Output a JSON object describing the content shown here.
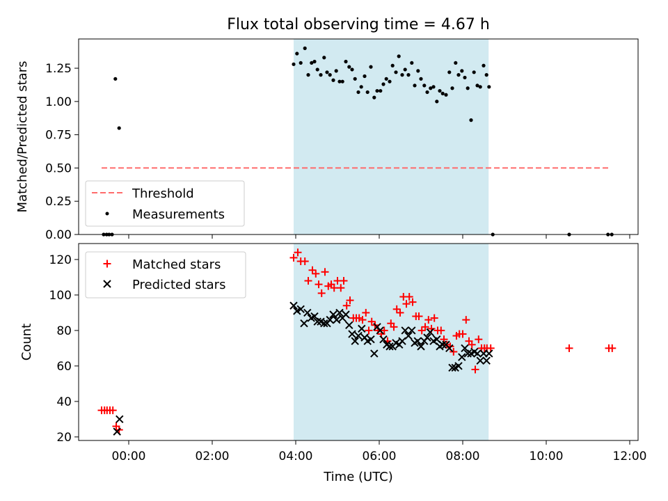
{
  "title": "Flux total observing time = 4.67 h",
  "colors": {
    "shade": "#add8e6",
    "threshold": "#ff6b6b",
    "measurements": "#000000",
    "matched": "#ff0000",
    "predicted": "#000000"
  },
  "chart_data": [
    {
      "type": "scatter",
      "ylabel": "Matched/Predicted stars",
      "xlim": [
        -1.2,
        12.2
      ],
      "ylim": [
        0,
        1.47
      ],
      "yticks": [
        0.0,
        0.25,
        0.5,
        0.75,
        1.0,
        1.25
      ],
      "ytick_labels": [
        "0.00",
        "0.25",
        "0.50",
        "0.75",
        "1.00",
        "1.25"
      ],
      "shaded_span": [
        3.95,
        8.62
      ],
      "threshold": {
        "label": "Threshold",
        "value": 0.5,
        "x_range": [
          -0.65,
          11.55
        ],
        "style": "dashed"
      },
      "legend": {
        "position": "lower-left",
        "entries": [
          "Threshold",
          "Measurements"
        ]
      },
      "series": [
        {
          "name": "Measurements",
          "marker": "dot",
          "x": [
            -0.6,
            -0.53,
            -0.47,
            -0.4,
            -0.32,
            -0.23,
            3.95,
            4.03,
            4.12,
            4.22,
            4.3,
            4.38,
            4.45,
            4.52,
            4.6,
            4.68,
            4.75,
            4.82,
            4.9,
            4.97,
            5.05,
            5.12,
            5.2,
            5.28,
            5.35,
            5.42,
            5.5,
            5.57,
            5.65,
            5.72,
            5.8,
            5.88,
            5.95,
            6.03,
            6.1,
            6.17,
            6.25,
            6.32,
            6.4,
            6.47,
            6.55,
            6.62,
            6.7,
            6.78,
            6.85,
            6.93,
            7.0,
            7.08,
            7.15,
            7.23,
            7.3,
            7.38,
            7.45,
            7.52,
            7.6,
            7.68,
            7.75,
            7.83,
            7.9,
            7.98,
            8.05,
            8.12,
            8.2,
            8.27,
            8.35,
            8.42,
            8.5,
            8.57,
            8.63,
            8.72,
            10.55,
            11.48,
            11.57
          ],
          "y": [
            0.0,
            0.0,
            0.0,
            0.0,
            1.17,
            0.8,
            1.28,
            1.36,
            1.29,
            1.4,
            1.2,
            1.29,
            1.3,
            1.24,
            1.2,
            1.33,
            1.22,
            1.2,
            1.16,
            1.23,
            1.15,
            1.15,
            1.3,
            1.26,
            1.24,
            1.17,
            1.07,
            1.11,
            1.19,
            1.07,
            1.26,
            1.03,
            1.08,
            1.08,
            1.13,
            1.17,
            1.15,
            1.27,
            1.22,
            1.34,
            1.2,
            1.24,
            1.2,
            1.29,
            1.12,
            1.23,
            1.17,
            1.12,
            1.07,
            1.1,
            1.11,
            1.0,
            1.08,
            1.06,
            1.05,
            1.22,
            1.1,
            1.29,
            1.2,
            1.23,
            1.18,
            1.1,
            0.86,
            1.22,
            1.12,
            1.11,
            1.27,
            1.2,
            1.11,
            0.0,
            0.0,
            0.0,
            0.0
          ]
        }
      ]
    },
    {
      "type": "scatter",
      "ylabel": "Count",
      "xlabel": "Time (UTC)",
      "xlim": [
        -1.2,
        12.2
      ],
      "ylim": [
        18,
        129
      ],
      "xticks": [
        0,
        2,
        4,
        6,
        8,
        10,
        12
      ],
      "xtick_labels": [
        "00:00",
        "02:00",
        "04:00",
        "06:00",
        "08:00",
        "10:00",
        "12:00"
      ],
      "yticks": [
        20,
        40,
        60,
        80,
        100,
        120
      ],
      "ytick_labels": [
        "20",
        "40",
        "60",
        "80",
        "100",
        "120"
      ],
      "shaded_span": [
        3.95,
        8.62
      ],
      "legend": {
        "position": "upper-left",
        "entries": [
          "Matched stars",
          "Predicted stars"
        ]
      },
      "series": [
        {
          "name": "Matched stars",
          "marker": "plus",
          "x": [
            -0.65,
            -0.58,
            -0.52,
            -0.45,
            -0.38,
            -0.3,
            -0.23,
            3.95,
            4.05,
            4.12,
            4.22,
            4.3,
            4.4,
            4.48,
            4.55,
            4.62,
            4.7,
            4.78,
            4.85,
            4.92,
            5.0,
            5.08,
            5.15,
            5.22,
            5.3,
            5.38,
            5.45,
            5.52,
            5.6,
            5.68,
            5.75,
            5.82,
            5.9,
            5.97,
            6.05,
            6.12,
            6.2,
            6.28,
            6.35,
            6.42,
            6.5,
            6.58,
            6.65,
            6.72,
            6.8,
            6.88,
            6.95,
            7.02,
            7.1,
            7.18,
            7.25,
            7.32,
            7.4,
            7.48,
            7.55,
            7.62,
            7.7,
            7.78,
            7.85,
            7.92,
            8.0,
            8.08,
            8.15,
            8.22,
            8.3,
            8.38,
            8.45,
            8.52,
            8.58,
            8.67,
            10.55,
            11.5,
            11.58
          ],
          "y": [
            35,
            35,
            35,
            35,
            35,
            26,
            24,
            121,
            124,
            119,
            119,
            108,
            114,
            112,
            106,
            101,
            113,
            105,
            106,
            104,
            108,
            104,
            108,
            94,
            97,
            87,
            87,
            87,
            86,
            90,
            80,
            85,
            83,
            80,
            78,
            80,
            74,
            84,
            82,
            92,
            90,
            99,
            95,
            99,
            96,
            88,
            88,
            80,
            82,
            86,
            81,
            87,
            80,
            80,
            75,
            72,
            71,
            68,
            77,
            78,
            78,
            86,
            74,
            72,
            58,
            75,
            70,
            70,
            70,
            70,
            70,
            70,
            70
          ]
        },
        {
          "name": "Predicted stars",
          "marker": "x",
          "x": [
            -0.28,
            -0.22,
            3.95,
            4.03,
            4.12,
            4.2,
            4.28,
            4.37,
            4.45,
            4.52,
            4.6,
            4.68,
            4.75,
            4.82,
            4.9,
            4.98,
            5.05,
            5.12,
            5.2,
            5.28,
            5.35,
            5.42,
            5.5,
            5.58,
            5.65,
            5.72,
            5.8,
            5.88,
            5.95,
            6.02,
            6.1,
            6.18,
            6.25,
            6.32,
            6.4,
            6.48,
            6.55,
            6.62,
            6.7,
            6.78,
            6.85,
            6.92,
            7.0,
            7.08,
            7.15,
            7.22,
            7.3,
            7.38,
            7.45,
            7.52,
            7.6,
            7.68,
            7.75,
            7.82,
            7.9,
            7.98,
            8.05,
            8.12,
            8.2,
            8.28,
            8.35,
            8.42,
            8.5,
            8.57,
            8.63
          ],
          "y": [
            23,
            30,
            94,
            91,
            92,
            84,
            90,
            87,
            88,
            85,
            85,
            84,
            84,
            86,
            89,
            86,
            90,
            87,
            89,
            83,
            78,
            74,
            77,
            81,
            76,
            74,
            75,
            67,
            82,
            80,
            75,
            72,
            71,
            71,
            73,
            72,
            74,
            80,
            77,
            80,
            73,
            74,
            71,
            74,
            76,
            79,
            74,
            75,
            71,
            72,
            72,
            70,
            59,
            59,
            60,
            65,
            70,
            67,
            67,
            68,
            67,
            63,
            67,
            63,
            67
          ]
        }
      ]
    }
  ]
}
